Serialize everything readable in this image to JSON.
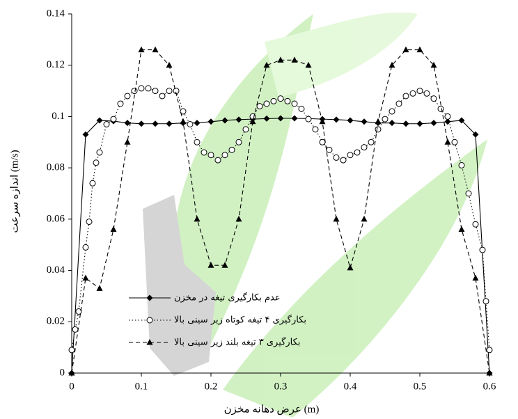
{
  "chart_data": {
    "type": "line",
    "x_label": "عرض دهانه مخزن (m)",
    "y_label": "اندازه سرعت (m/s)",
    "xlim": [
      0,
      0.6
    ],
    "xticks": [
      0,
      0.1,
      0.2,
      0.3,
      0.4,
      0.5,
      0.6
    ],
    "ylim": [
      0,
      0.14
    ],
    "yticks": [
      0,
      0.02,
      0.04,
      0.06,
      0.08,
      0.1,
      0.12,
      0.14
    ],
    "grid": false,
    "series": [
      {
        "name": "عدم بکارگیری تیغه در مخزن",
        "color": "#000000",
        "marker": "diamond",
        "dash": "solid",
        "x": [
          0,
          0.02,
          0.04,
          0.06,
          0.08,
          0.1,
          0.12,
          0.14,
          0.16,
          0.18,
          0.2,
          0.22,
          0.24,
          0.26,
          0.28,
          0.3,
          0.32,
          0.34,
          0.36,
          0.38,
          0.4,
          0.42,
          0.44,
          0.46,
          0.48,
          0.5,
          0.52,
          0.54,
          0.56,
          0.58,
          0.6
        ],
        "values": [
          0,
          0.093,
          0.0985,
          0.0982,
          0.0975,
          0.0972,
          0.0972,
          0.0972,
          0.0975,
          0.0975,
          0.098,
          0.0985,
          0.0988,
          0.099,
          0.0992,
          0.0993,
          0.0993,
          0.0992,
          0.099,
          0.0988,
          0.0985,
          0.098,
          0.0975,
          0.0975,
          0.0972,
          0.0972,
          0.0975,
          0.098,
          0.0985,
          0.093,
          0
        ]
      },
      {
        "name": "بکارگیری ۴ تیغه کوتاه زیر سینی بالا",
        "color": "#000000",
        "marker": "circle",
        "dash": "dotted",
        "x": [
          0,
          0.005,
          0.01,
          0.02,
          0.025,
          0.03,
          0.035,
          0.04,
          0.05,
          0.06,
          0.07,
          0.08,
          0.09,
          0.1,
          0.11,
          0.12,
          0.13,
          0.14,
          0.15,
          0.16,
          0.17,
          0.18,
          0.19,
          0.2,
          0.21,
          0.22,
          0.23,
          0.24,
          0.25,
          0.26,
          0.27,
          0.28,
          0.29,
          0.3,
          0.31,
          0.32,
          0.33,
          0.34,
          0.35,
          0.36,
          0.37,
          0.38,
          0.39,
          0.4,
          0.41,
          0.42,
          0.43,
          0.44,
          0.45,
          0.46,
          0.47,
          0.48,
          0.49,
          0.5,
          0.51,
          0.52,
          0.53,
          0.54,
          0.55,
          0.56,
          0.57,
          0.58,
          0.59,
          0.595,
          0.6
        ],
        "values": [
          0.009,
          0.017,
          0.024,
          0.049,
          0.059,
          0.074,
          0.082,
          0.086,
          0.097,
          0.099,
          0.105,
          0.108,
          0.11,
          0.111,
          0.111,
          0.11,
          0.108,
          0.11,
          0.11,
          0.102,
          0.097,
          0.09,
          0.086,
          0.085,
          0.083,
          0.085,
          0.087,
          0.09,
          0.095,
          0.1,
          0.104,
          0.105,
          0.106,
          0.107,
          0.106,
          0.105,
          0.103,
          0.099,
          0.095,
          0.09,
          0.087,
          0.084,
          0.083,
          0.085,
          0.086,
          0.088,
          0.09,
          0.095,
          0.099,
          0.102,
          0.105,
          0.108,
          0.109,
          0.11,
          0.109,
          0.107,
          0.103,
          0.1,
          0.09,
          0.081,
          0.07,
          0.058,
          0.048,
          0.028,
          0.009
        ]
      },
      {
        "name": "بکارگیری ۳ تیغه بلند زیر سینی بالا",
        "color": "#000000",
        "marker": "triangle",
        "dash": "dashed",
        "x": [
          0,
          0.02,
          0.04,
          0.06,
          0.08,
          0.1,
          0.12,
          0.14,
          0.16,
          0.18,
          0.2,
          0.22,
          0.24,
          0.26,
          0.28,
          0.3,
          0.32,
          0.34,
          0.36,
          0.38,
          0.4,
          0.42,
          0.44,
          0.46,
          0.48,
          0.5,
          0.52,
          0.54,
          0.56,
          0.58,
          0.6
        ],
        "values": [
          0,
          0.037,
          0.033,
          0.056,
          0.09,
          0.126,
          0.126,
          0.12,
          0.098,
          0.06,
          0.042,
          0.042,
          0.06,
          0.098,
          0.12,
          0.122,
          0.122,
          0.12,
          0.098,
          0.06,
          0.041,
          0.06,
          0.098,
          0.12,
          0.126,
          0.126,
          0.12,
          0.09,
          0.056,
          0.037,
          0
        ]
      }
    ]
  }
}
